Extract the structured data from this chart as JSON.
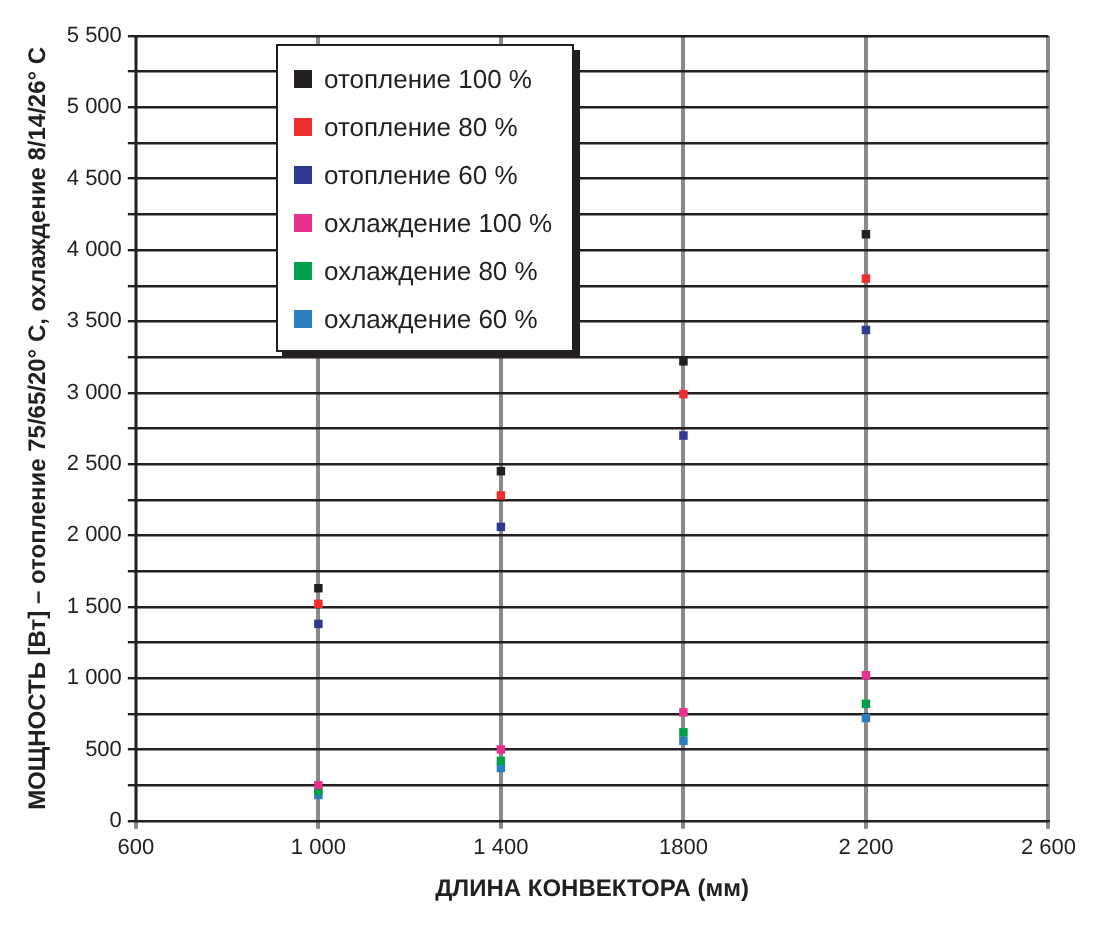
{
  "chart_data": {
    "type": "scatter",
    "xlabel": "ДЛИНА КОНВЕКТОРА (мм)",
    "ylabel": "МОЩНОСТЬ [Вт] – отопление 75/65/20° C, охлаждение 8/14/26° C",
    "x": [
      1000,
      1400,
      1800,
      2200
    ],
    "series": [
      {
        "name": "отопление 100 %",
        "color": "#231f20",
        "values": [
          1630,
          2450,
          3220,
          4110
        ]
      },
      {
        "name": "отопление 80 %",
        "color": "#ed2d2e",
        "values": [
          1520,
          2280,
          2990,
          3800
        ]
      },
      {
        "name": "отопление 60 %",
        "color": "#2e3a92",
        "values": [
          1380,
          2060,
          2700,
          3440
        ]
      },
      {
        "name": "охлаждение 100 %",
        "color": "#e8318e",
        "values": [
          250,
          500,
          760,
          1020
        ]
      },
      {
        "name": "охлаждение 80 %",
        "color": "#00a04b",
        "values": [
          210,
          420,
          620,
          820
        ]
      },
      {
        "name": "охлаждение 60 %",
        "color": "#2a7fc2",
        "values": [
          180,
          370,
          560,
          720
        ]
      }
    ],
    "xlim": [
      600,
      2600
    ],
    "xticks": [
      {
        "value": 600,
        "label": "600"
      },
      {
        "value": 1000,
        "label": "1 000"
      },
      {
        "value": 1400,
        "label": "1 400"
      },
      {
        "value": 1800,
        "label": "1800"
      },
      {
        "value": 2200,
        "label": "2 200"
      },
      {
        "value": 2600,
        "label": "2 600"
      }
    ],
    "ylim": [
      0,
      5500
    ],
    "yticks": [
      0,
      {
        "value": 250,
        "label": null
      },
      500,
      {
        "value": 750,
        "label": null
      },
      {
        "value": 1000,
        "label": "1 000"
      },
      {
        "value": 1250,
        "label": null
      },
      {
        "value": 1500,
        "label": "1 500"
      },
      {
        "value": 1750,
        "label": null
      },
      {
        "value": 2000,
        "label": "2 000"
      },
      {
        "value": 2250,
        "label": null
      },
      {
        "value": 2500,
        "label": "2 500"
      },
      {
        "value": 2750,
        "label": null
      },
      {
        "value": 3000,
        "label": "3 000"
      },
      {
        "value": 3250,
        "label": null
      },
      {
        "value": 3500,
        "label": "3 500"
      },
      {
        "value": 3750,
        "label": null
      },
      {
        "value": 4000,
        "label": "4 000"
      },
      {
        "value": 4250,
        "label": null
      },
      {
        "value": 4500,
        "label": "4 500"
      },
      {
        "value": 4750,
        "label": null
      },
      {
        "value": 5000,
        "label": "5 000"
      },
      {
        "value": 5250,
        "label": null
      },
      {
        "value": 5500,
        "label": "5 500"
      }
    ],
    "grid": true,
    "legend": "top",
    "marker": "square"
  }
}
